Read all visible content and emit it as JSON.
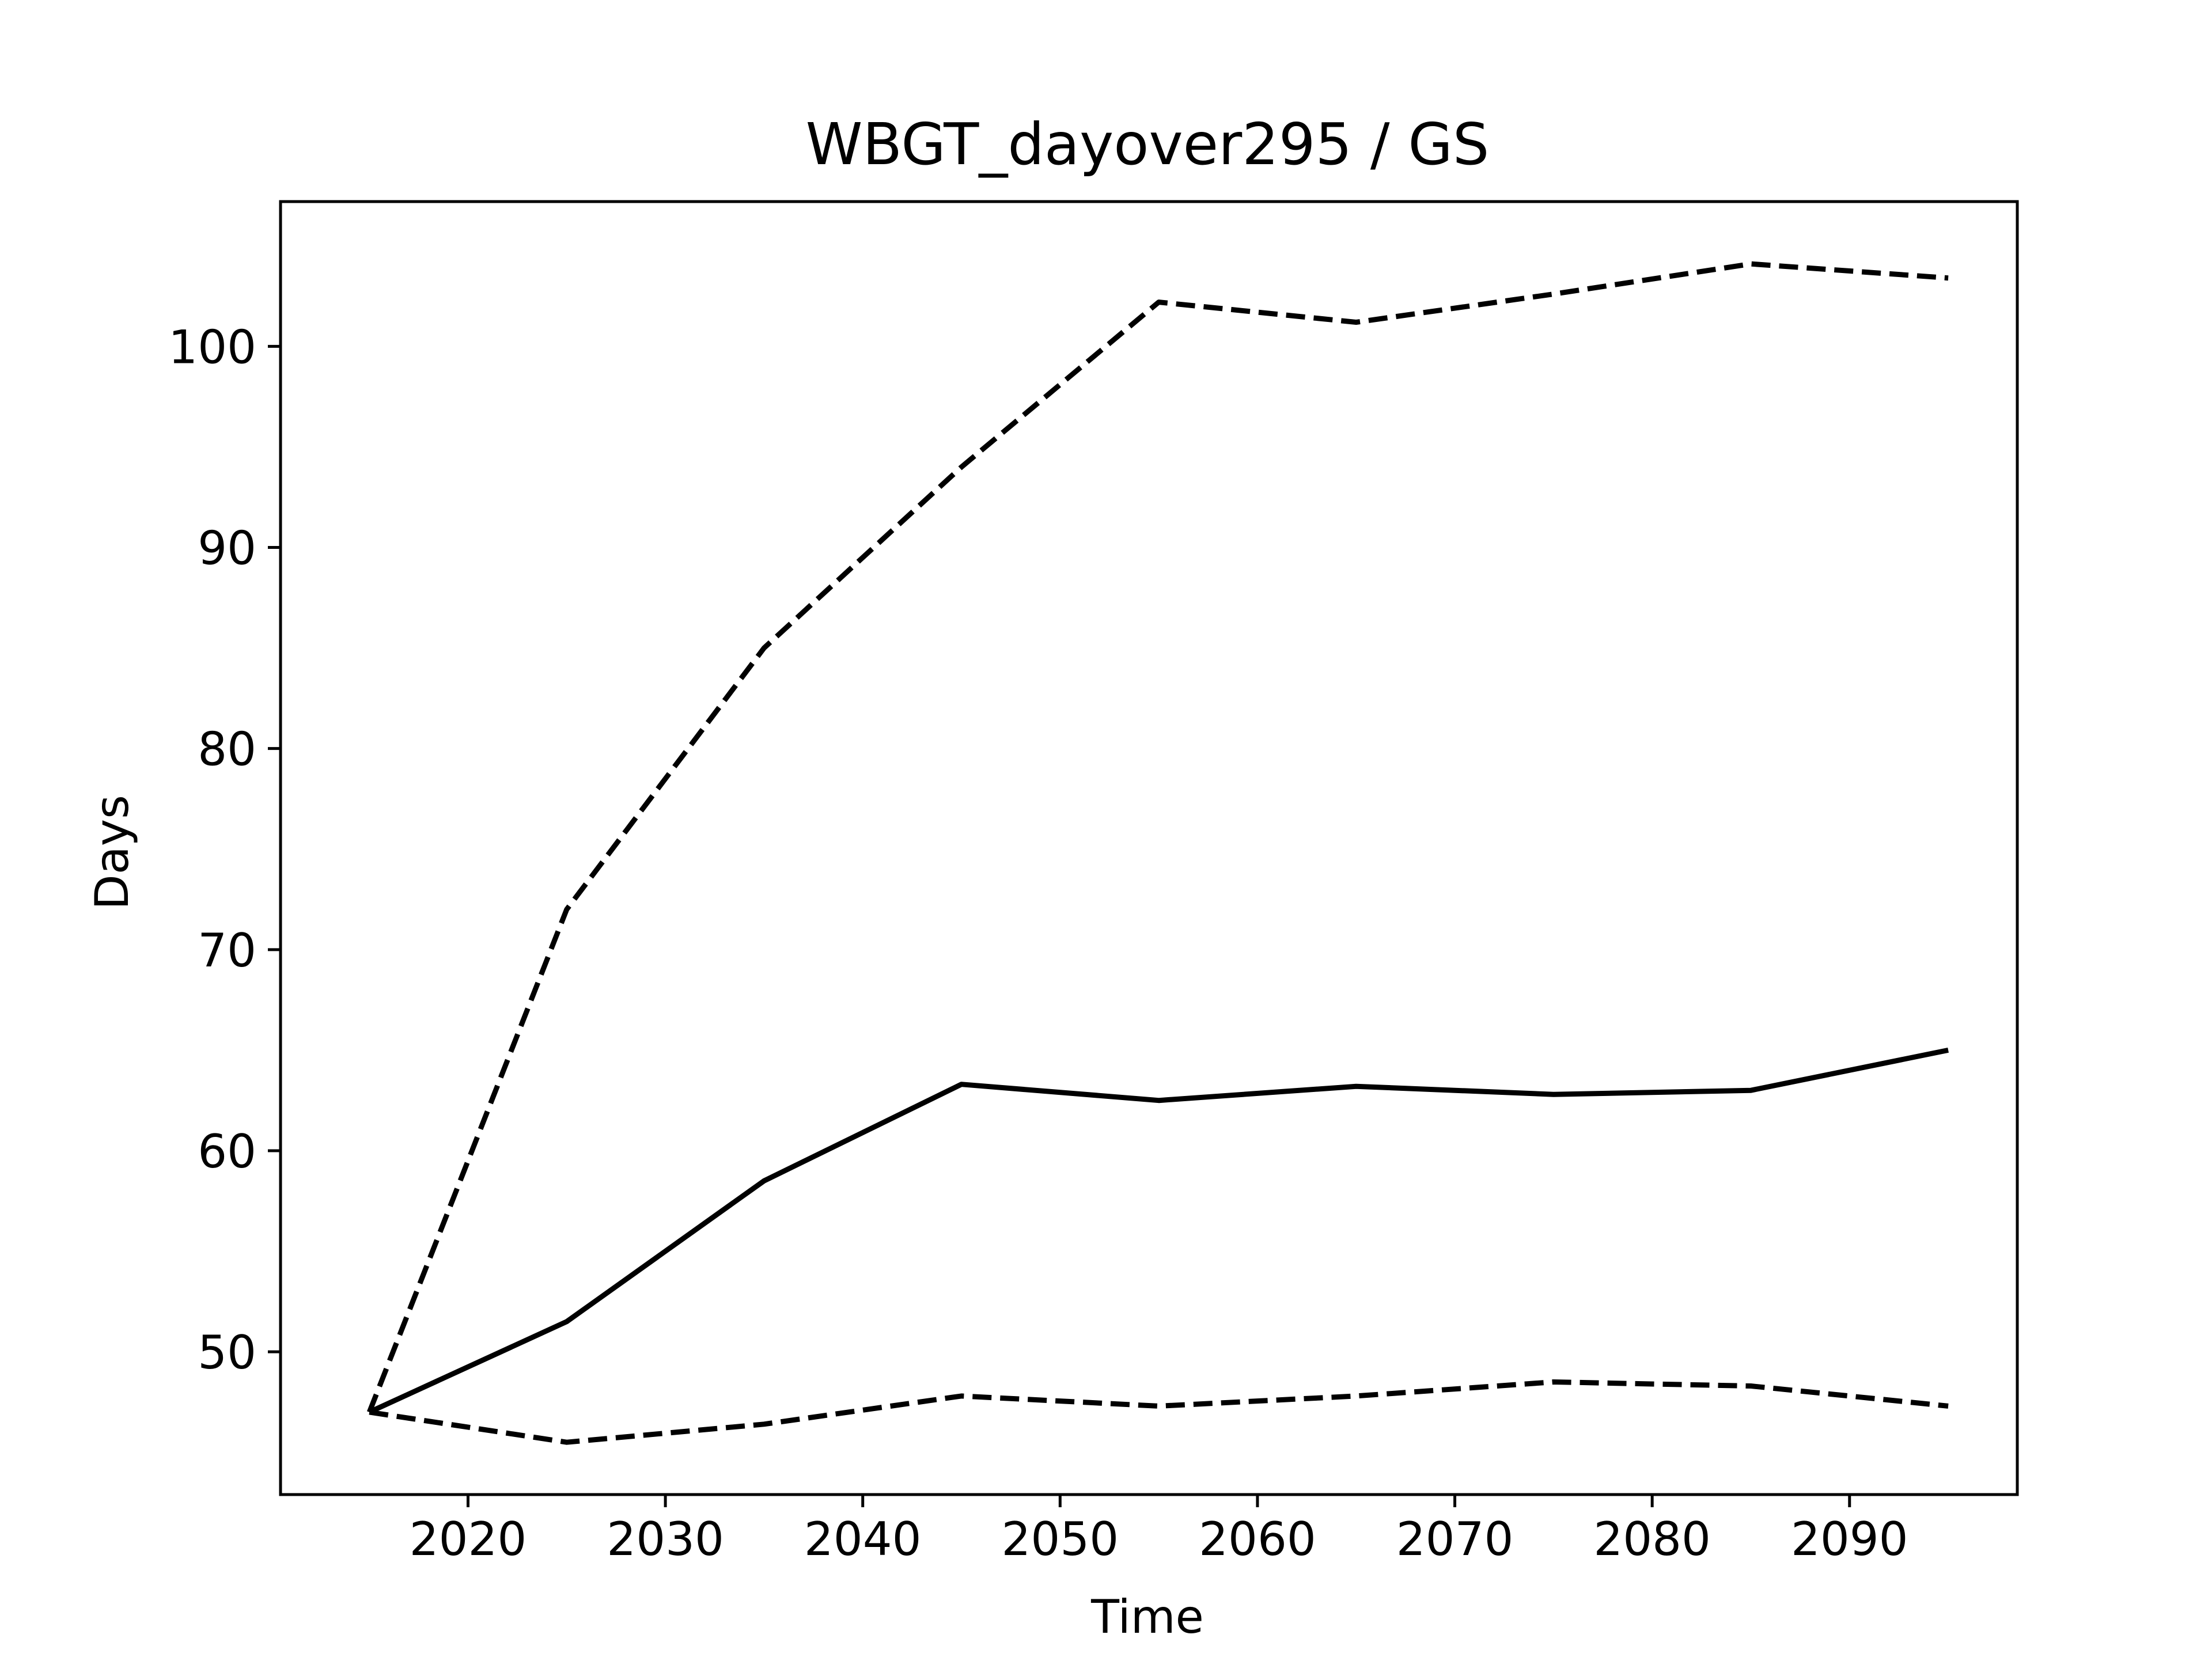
{
  "chart_data": {
    "type": "line",
    "title": "WBGT_dayover295 / GS",
    "xlabel": "Time",
    "ylabel": "Days",
    "x": [
      2015,
      2025,
      2035,
      2045,
      2055,
      2065,
      2075,
      2085,
      2095
    ],
    "xlim": [
      2010.5,
      2098.5
    ],
    "ylim": [
      42.9,
      107.2
    ],
    "xticks": [
      2020,
      2030,
      2040,
      2050,
      2060,
      2070,
      2080,
      2090
    ],
    "yticks": [
      50,
      60,
      70,
      80,
      90,
      100
    ],
    "grid": false,
    "series": [
      {
        "style": "solid",
        "color": "#000000",
        "values": [
          47.0,
          51.5,
          58.5,
          63.3,
          62.5,
          63.2,
          62.8,
          63.0,
          65.0
        ]
      },
      {
        "style": "dashed",
        "color": "#000000",
        "values": [
          47.0,
          72.0,
          85.0,
          94.0,
          102.2,
          101.2,
          102.6,
          104.1,
          103.4
        ]
      },
      {
        "style": "dashed",
        "color": "#000000",
        "values": [
          47.0,
          45.5,
          46.4,
          47.8,
          47.3,
          47.8,
          48.5,
          48.3,
          47.3
        ]
      }
    ]
  }
}
